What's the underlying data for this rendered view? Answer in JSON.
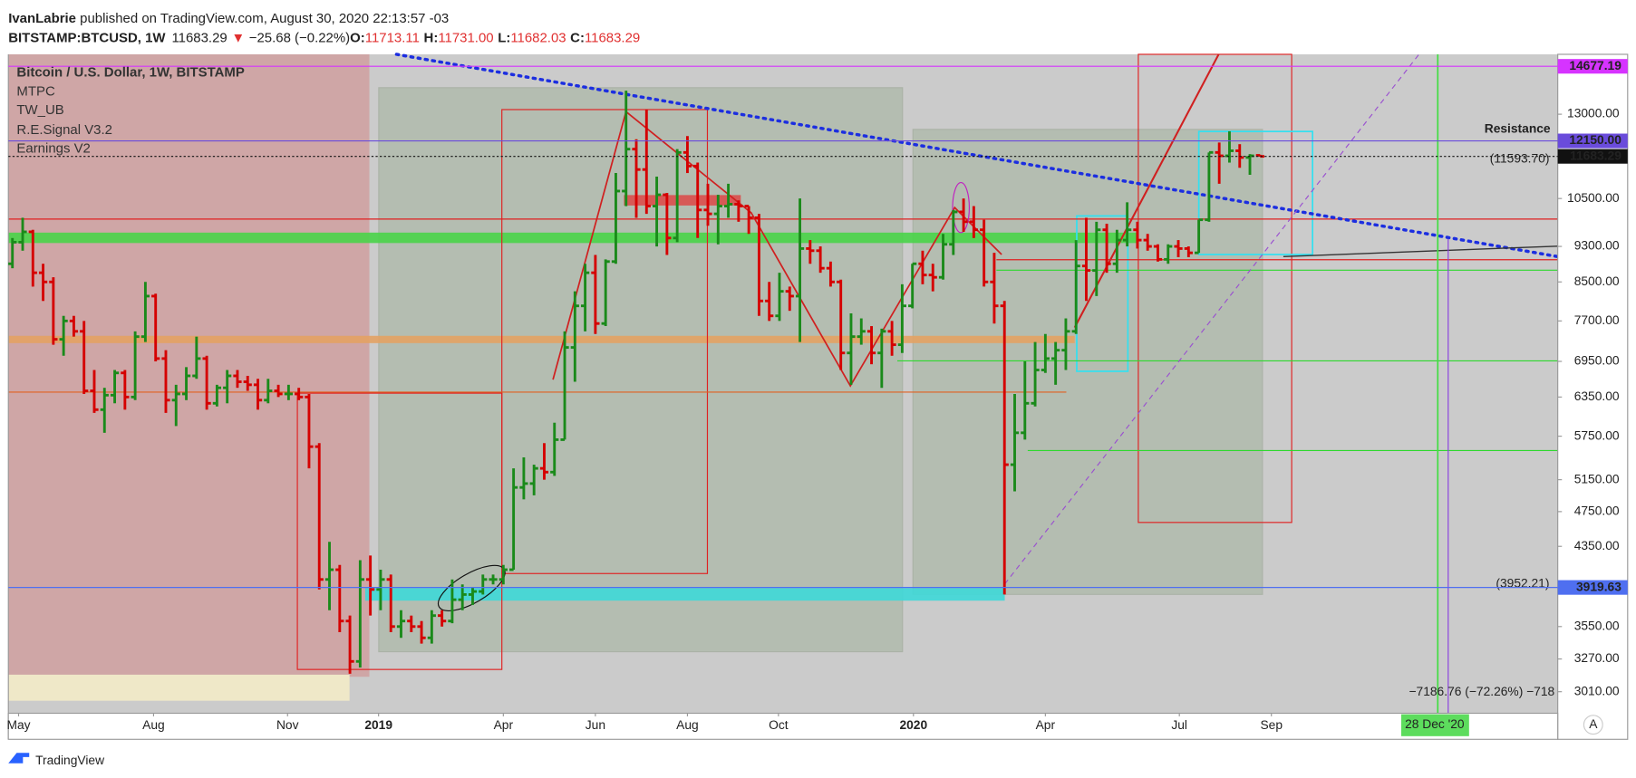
{
  "chart_data": {
    "type": "ohlc",
    "header": {
      "author": "IvanLabrie",
      "published": " published on TradingView.com, August 30, 2020 22:13:57 -03",
      "symbol": "BITSTAMP:BTCUSD, 1W",
      "arrow": "▼",
      "change": "−25.68 (−0.22%)",
      "open_key": "O:",
      "high_key": "H:",
      "low_key": "L:",
      "close_key": "C:",
      "high_label": "11731.00"
    },
    "legend_lines": [
      "Bitcoin / U.S. Dollar, 1W, BITSTAMP",
      "MTPC",
      "TW_UB",
      "R.E.Signal V3.2",
      "Earnings V2"
    ],
    "up_color": "#1a8a1a",
    "down_color": "#d50000",
    "log_scale": true,
    "grid": false,
    "ylim": [
      2850,
      15130
    ],
    "xlim": [
      -0.4,
      151.1
    ],
    "yticks": [
      {
        "value": 13000,
        "label": "13000.00"
      },
      {
        "value": 10500,
        "label": "10500.00"
      },
      {
        "value": 9300,
        "label": "9300.00"
      },
      {
        "value": 8500,
        "label": "8500.00"
      },
      {
        "value": 7700,
        "label": "7700.00"
      },
      {
        "value": 6950,
        "label": "6950.00"
      },
      {
        "value": 6350,
        "label": "6350.00"
      },
      {
        "value": 5750,
        "label": "5750.00"
      },
      {
        "value": 5150,
        "label": "5150.00"
      },
      {
        "value": 4750,
        "label": "4750.00"
      },
      {
        "value": 4350,
        "label": "4350.00"
      },
      {
        "value": 3550,
        "label": "3550.00"
      },
      {
        "value": 3270,
        "label": "3270.00"
      },
      {
        "value": 3010,
        "label": "3010.00"
      }
    ],
    "xticks": [
      {
        "value": 0.6,
        "label": "May"
      },
      {
        "value": 13.8,
        "label": "Aug"
      },
      {
        "value": 26.9,
        "label": "Nov"
      },
      {
        "value": 35.8,
        "label": "2019"
      },
      {
        "value": 48,
        "label": "Apr"
      },
      {
        "value": 57,
        "label": "Jun"
      },
      {
        "value": 66,
        "label": "Aug"
      },
      {
        "value": 74.9,
        "label": "Oct"
      },
      {
        "value": 88.1,
        "label": "2020"
      },
      {
        "value": 101,
        "label": "Apr"
      },
      {
        "value": 114.1,
        "label": "Jul"
      },
      {
        "value": 123.1,
        "label": "Sep"
      }
    ],
    "price_labels": [
      {
        "value": 14677.19,
        "color": "#d633ff"
      },
      {
        "value": 12150,
        "label": "12150.00",
        "color": "#6a4cdb"
      },
      {
        "value": 11683.29,
        "color": "#111111"
      },
      {
        "value": 3919.63,
        "color": "#4f6ff0"
      }
    ],
    "level_notes": [
      {
        "value": 11593.7,
        "label": "(11593.70)",
        "color": "#2e8b2e"
      },
      {
        "value": 3952.21,
        "label": "(3952.21)",
        "color": "#e03030"
      }
    ],
    "annotations": {
      "resistance": "Resistance",
      "measure": "−7186.76 (−72.26%) −718",
      "cursor_date": "28 Dec '20",
      "auto": "A",
      "brand": "TradingView"
    },
    "ohlc": [
      [
        8900,
        9500,
        8800,
        9400
      ],
      [
        9400,
        10000,
        9200,
        9650
      ],
      [
        9650,
        9700,
        8400,
        8700
      ],
      [
        8700,
        8900,
        8100,
        8500
      ],
      [
        8500,
        8600,
        7250,
        7350
      ],
      [
        7350,
        7800,
        7050,
        7700
      ],
      [
        7700,
        7800,
        7400,
        7500
      ],
      [
        7500,
        7700,
        6400,
        6450
      ],
      [
        6450,
        6800,
        6100,
        6150
      ],
      [
        6150,
        6500,
        5800,
        6380
      ],
      [
        6380,
        6800,
        6250,
        6750
      ],
      [
        6750,
        6800,
        6150,
        6350
      ],
      [
        6350,
        7500,
        6300,
        7400
      ],
      [
        7400,
        8500,
        7300,
        8200
      ],
      [
        8200,
        8250,
        6950,
        7000
      ],
      [
        7000,
        7150,
        6100,
        6300
      ],
      [
        6300,
        6550,
        5900,
        6400
      ],
      [
        6400,
        6850,
        6300,
        6700
      ],
      [
        6700,
        7400,
        6650,
        7000
      ],
      [
        7000,
        7050,
        6150,
        6250
      ],
      [
        6250,
        6550,
        6200,
        6500
      ],
      [
        6500,
        6800,
        6250,
        6700
      ],
      [
        6700,
        6800,
        6500,
        6600
      ],
      [
        6600,
        6700,
        6450,
        6550
      ],
      [
        6550,
        6650,
        6150,
        6300
      ],
      [
        6300,
        6650,
        6250,
        6450
      ],
      [
        6450,
        6550,
        6350,
        6400
      ],
      [
        6400,
        6550,
        6300,
        6400
      ],
      [
        6400,
        6500,
        6300,
        6350
      ],
      [
        6350,
        6400,
        5300,
        5600
      ],
      [
        5600,
        5650,
        3900,
        4000
      ],
      [
        4000,
        4400,
        3700,
        4100
      ],
      [
        4100,
        4150,
        3500,
        3600
      ],
      [
        3600,
        3650,
        3150,
        3250
      ],
      [
        3250,
        4200,
        3200,
        4000
      ],
      [
        4000,
        4250,
        3650,
        3900
      ],
      [
        3900,
        4100,
        3700,
        4000
      ],
      [
        4000,
        4050,
        3500,
        3550
      ],
      [
        3550,
        3700,
        3450,
        3600
      ],
      [
        3600,
        3650,
        3500,
        3550
      ],
      [
        3550,
        3600,
        3400,
        3450
      ],
      [
        3450,
        3700,
        3400,
        3650
      ],
      [
        3650,
        3700,
        3550,
        3600
      ],
      [
        3600,
        4000,
        3580,
        3800
      ],
      [
        3800,
        3950,
        3700,
        3850
      ],
      [
        3850,
        3920,
        3750,
        3880
      ],
      [
        3880,
        4050,
        3850,
        4000
      ],
      [
        4000,
        4050,
        3950,
        4000
      ],
      [
        4000,
        4150,
        3950,
        4100
      ],
      [
        4100,
        5300,
        4100,
        5050
      ],
      [
        5050,
        5450,
        4900,
        5100
      ],
      [
        5100,
        5350,
        4950,
        5300
      ],
      [
        5300,
        5650,
        5150,
        5250
      ],
      [
        5250,
        5950,
        5200,
        5700
      ],
      [
        5700,
        7500,
        5700,
        7200
      ],
      [
        7200,
        8300,
        6600,
        8000
      ],
      [
        8000,
        8900,
        7500,
        8700
      ],
      [
        8700,
        9100,
        7450,
        7650
      ],
      [
        7650,
        9000,
        7600,
        8950
      ],
      [
        8950,
        11200,
        8900,
        10700
      ],
      [
        10700,
        13800,
        10300,
        11900
      ],
      [
        11900,
        12200,
        10000,
        11300
      ],
      [
        11300,
        13150,
        10100,
        10300
      ],
      [
        10300,
        11100,
        9300,
        10600
      ],
      [
        10600,
        10650,
        9100,
        9500
      ],
      [
        9500,
        11900,
        9400,
        11800
      ],
      [
        11800,
        12300,
        11200,
        11400
      ],
      [
        11400,
        11500,
        9500,
        10200
      ],
      [
        10200,
        10900,
        9800,
        10100
      ],
      [
        10100,
        10600,
        9350,
        10300
      ],
      [
        10300,
        10900,
        10000,
        10350
      ],
      [
        10350,
        10450,
        9900,
        10300
      ],
      [
        10300,
        10300,
        9600,
        10000
      ],
      [
        10000,
        10100,
        7800,
        8100
      ],
      [
        8100,
        8500,
        7700,
        7800
      ],
      [
        7800,
        8700,
        7700,
        8300
      ],
      [
        8300,
        8400,
        7900,
        8200
      ],
      [
        8200,
        10500,
        7300,
        9250
      ],
      [
        9250,
        9450,
        8900,
        9200
      ],
      [
        9200,
        9300,
        8700,
        8800
      ],
      [
        8800,
        8950,
        8400,
        8500
      ],
      [
        8500,
        8550,
        6800,
        7100
      ],
      [
        7100,
        7850,
        6550,
        7400
      ],
      [
        7400,
        7750,
        7250,
        7500
      ],
      [
        7500,
        7600,
        6900,
        7100
      ],
      [
        7100,
        7550,
        6500,
        7500
      ],
      [
        7500,
        7700,
        7050,
        7250
      ],
      [
        7250,
        8450,
        7100,
        8000
      ],
      [
        8000,
        8900,
        7950,
        8900
      ],
      [
        8900,
        9200,
        8450,
        8650
      ],
      [
        8650,
        8900,
        8300,
        8600
      ],
      [
        8600,
        9600,
        8550,
        9350
      ],
      [
        9350,
        10200,
        9100,
        10150
      ],
      [
        10150,
        10500,
        9650,
        9900
      ],
      [
        9900,
        10300,
        9500,
        9700
      ],
      [
        9700,
        9950,
        8400,
        8500
      ],
      [
        8500,
        9150,
        7650,
        8000
      ],
      [
        8000,
        8100,
        3850,
        5350
      ],
      [
        5350,
        6400,
        5000,
        5800
      ],
      [
        5800,
        6950,
        5700,
        6250
      ],
      [
        6250,
        7300,
        6200,
        6800
      ],
      [
        6800,
        7450,
        6750,
        7000
      ],
      [
        7000,
        7300,
        6550,
        7150
      ],
      [
        7150,
        7750,
        6800,
        7500
      ],
      [
        7500,
        9450,
        7450,
        8850
      ],
      [
        8850,
        10000,
        8100,
        8750
      ],
      [
        8750,
        9900,
        8200,
        9700
      ],
      [
        9700,
        9850,
        8700,
        8900
      ],
      [
        8900,
        9700,
        8700,
        9450
      ],
      [
        9450,
        10400,
        9300,
        9700
      ],
      [
        9700,
        9900,
        9250,
        9450
      ],
      [
        9450,
        9600,
        9200,
        9300
      ],
      [
        9300,
        9350,
        8950,
        9000
      ],
      [
        9000,
        9350,
        8900,
        9300
      ],
      [
        9300,
        9450,
        9050,
        9250
      ],
      [
        9250,
        9300,
        9050,
        9150
      ],
      [
        9150,
        9950,
        9150,
        9950
      ],
      [
        9950,
        11800,
        9900,
        11800
      ],
      [
        11800,
        12100,
        10900,
        11700
      ],
      [
        11700,
        12450,
        11500,
        11850
      ],
      [
        11850,
        12050,
        11350,
        11650
      ],
      [
        11650,
        11750,
        11150,
        11700
      ],
      [
        11713.11,
        11731,
        11682.03,
        11683.29
      ]
    ]
  }
}
